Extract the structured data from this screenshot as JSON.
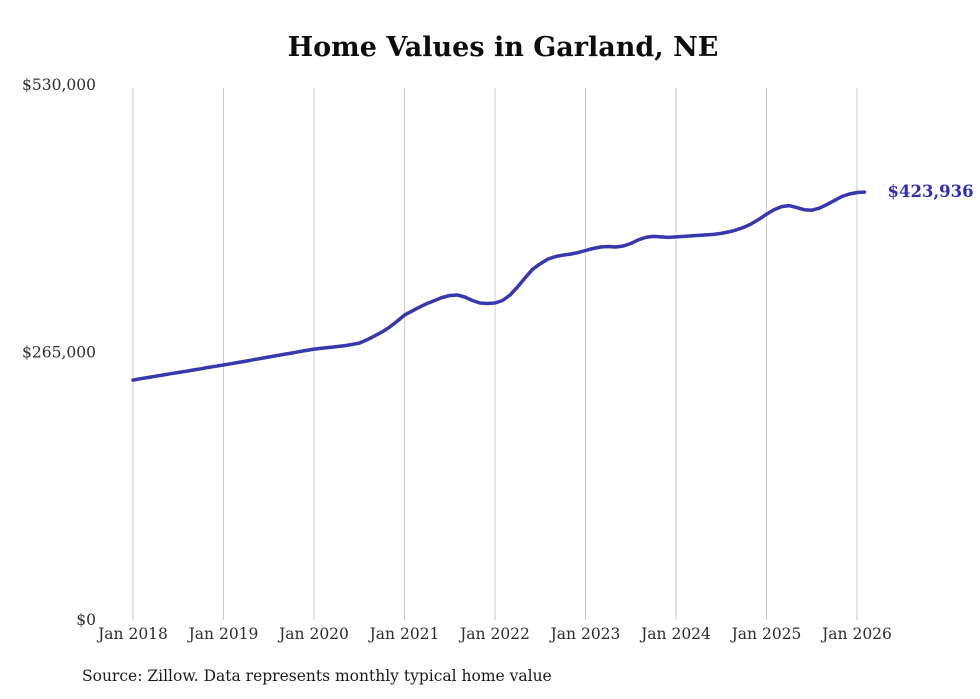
{
  "source_note": "Source: Zillow. Data represents monthly typical home value",
  "chart_data": {
    "type": "line",
    "title": "Home Values in Garland, NE",
    "xlabel": "",
    "ylabel": "",
    "ylim": [
      0,
      530000
    ],
    "grid": "vertical-only",
    "line_color": "#3737ae",
    "annotation_color": "#2d2db8",
    "grid_color": "#cbcbcb",
    "x_tick_labels": [
      "Jan 2018",
      "Jan 2019",
      "Jan 2020",
      "Jan 2021",
      "Jan 2022",
      "Jan 2023",
      "Jan 2024",
      "Jan 2025",
      "Jan 2026"
    ],
    "y_ticks": [
      0,
      265000,
      530000
    ],
    "y_tick_labels": [
      "$0",
      "$265,000",
      "$530,000"
    ],
    "frequency": "monthly",
    "start_month": "2018-01",
    "end_value": 423936,
    "end_annotation": "$423,936",
    "values": [
      237700,
      239000,
      240200,
      241500,
      242700,
      244000,
      245200,
      246400,
      247700,
      248900,
      250200,
      251400,
      252600,
      253900,
      255200,
      256500,
      257900,
      259200,
      260500,
      261800,
      263100,
      264400,
      265800,
      267100,
      268400,
      269200,
      270000,
      270800,
      271600,
      272900,
      274300,
      277500,
      281200,
      285300,
      290000,
      295800,
      302100,
      306000,
      310000,
      313500,
      316500,
      319500,
      321500,
      322000,
      320000,
      316500,
      314000,
      313500,
      314000,
      316500,
      322000,
      330000,
      339000,
      347500,
      353000,
      357500,
      360000,
      361500,
      362500,
      364000,
      366000,
      368000,
      369500,
      370000,
      369500,
      370500,
      373000,
      376500,
      379000,
      380000,
      379500,
      379000,
      379500,
      380000,
      380500,
      381000,
      381500,
      382000,
      383000,
      384500,
      386500,
      389000,
      392500,
      397000,
      402000,
      406500,
      409500,
      410500,
      408500,
      406500,
      406000,
      408000,
      411500,
      415500,
      419500,
      422000,
      423500,
      423936
    ]
  }
}
